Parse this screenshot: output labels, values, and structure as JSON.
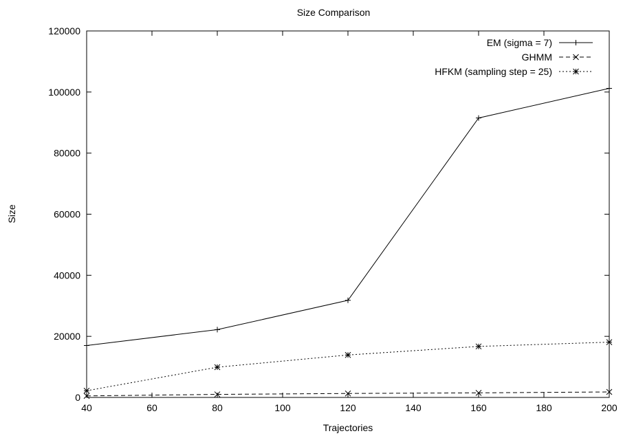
{
  "chart_data": {
    "type": "line",
    "title": "Size Comparison",
    "xlabel": "Trajectories",
    "ylabel": "Size",
    "xlim": [
      40,
      200
    ],
    "ylim": [
      0,
      120000
    ],
    "x_ticks": [
      40,
      60,
      80,
      100,
      120,
      140,
      160,
      180,
      200
    ],
    "y_ticks": [
      0,
      20000,
      40000,
      60000,
      80000,
      100000,
      120000
    ],
    "grid": false,
    "legend_position": "top-right",
    "x": [
      40,
      80,
      120,
      160,
      200
    ],
    "series": [
      {
        "name": "EM (sigma = 7)",
        "values": [
          17000,
          22200,
          31800,
          91500,
          101200
        ],
        "marker": "plus",
        "dash": "solid",
        "color": "#000000"
      },
      {
        "name": "GHMM",
        "values": [
          500,
          1000,
          1300,
          1500,
          1800
        ],
        "marker": "cross",
        "dash": "dashed",
        "color": "#000000"
      },
      {
        "name": "HFKM (sampling step = 25)",
        "values": [
          2200,
          9900,
          13900,
          16700,
          18100
        ],
        "marker": "star",
        "dash": "dotted",
        "color": "#000000"
      }
    ]
  }
}
